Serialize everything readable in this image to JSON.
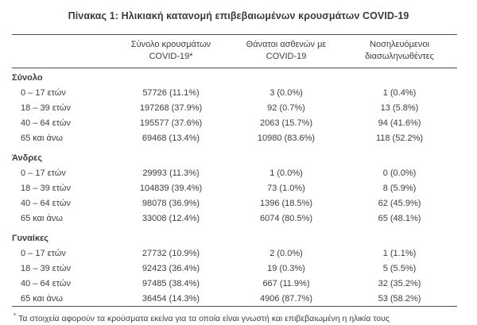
{
  "title": "Πίνακας 1: Ηλικιακή κατανομή επιβεβαιωμένων κρουσμάτων COVID-19",
  "table": {
    "columns": [
      {
        "line1": "",
        "line2": ""
      },
      {
        "line1": "Σύνολο κρουσμάτων",
        "line2": "COVID-19*"
      },
      {
        "line1": "Θάνατοι ασθενών με",
        "line2": "COVID-19"
      },
      {
        "line1": "Νοσηλευόμενοι",
        "line2": "διασωληνωθέντες"
      }
    ],
    "sections": [
      {
        "label": "Σύνολο",
        "rows": [
          {
            "age": "0 – 17 ετών",
            "cases": "57726 (11.1%)",
            "deaths": "3 (0.0%)",
            "intubated": "1 (0.4%)"
          },
          {
            "age": "18 – 39 ετών",
            "cases": "197268 (37.9%)",
            "deaths": "92 (0.7%)",
            "intubated": "13 (5.8%)"
          },
          {
            "age": "40 – 64 ετών",
            "cases": "195577 (37.6%)",
            "deaths": "2063 (15.7%)",
            "intubated": "94 (41.6%)"
          },
          {
            "age": "65 και άνω",
            "cases": "69468 (13.4%)",
            "deaths": "10980 (83.6%)",
            "intubated": "118 (52.2%)"
          }
        ]
      },
      {
        "label": "Άνδρες",
        "rows": [
          {
            "age": "0 – 17 ετών",
            "cases": "29993 (11.3%)",
            "deaths": "1 (0.0%)",
            "intubated": "0 (0.0%)"
          },
          {
            "age": "18 – 39 ετών",
            "cases": "104839 (39.4%)",
            "deaths": "73 (1.0%)",
            "intubated": "8 (5.9%)"
          },
          {
            "age": "40 – 64 ετών",
            "cases": "98078 (36.9%)",
            "deaths": "1396 (18.5%)",
            "intubated": "62 (45.9%)"
          },
          {
            "age": "65 και άνω",
            "cases": "33008 (12.4%)",
            "deaths": "6074 (80.5%)",
            "intubated": "65 (48.1%)"
          }
        ]
      },
      {
        "label": "Γυναίκες",
        "rows": [
          {
            "age": "0 – 17 ετών",
            "cases": "27732 (10.9%)",
            "deaths": "2 (0.0%)",
            "intubated": "1 (1.1%)"
          },
          {
            "age": "18 – 39 ετών",
            "cases": "92423 (36.4%)",
            "deaths": "19 (0.3%)",
            "intubated": "5 (5.5%)"
          },
          {
            "age": "40 – 64 ετών",
            "cases": "97485 (38.4%)",
            "deaths": "667 (11.9%)",
            "intubated": "32 (35.2%)"
          },
          {
            "age": "65 και άνω",
            "cases": "36454 (14.3%)",
            "deaths": "4906 (87.7%)",
            "intubated": "53 (58.2%)"
          }
        ]
      }
    ]
  },
  "footnote": {
    "marker": "*",
    "text": "Τα στοιχεία αφορούν τα κρούσματα εκείνα για τα οποία είναι γνωστή και επιβεβαιωμένη η ηλικία τους"
  },
  "colors": {
    "text": "#3c3d3f",
    "rule": "#4e4f52",
    "background": "#ffffff"
  }
}
